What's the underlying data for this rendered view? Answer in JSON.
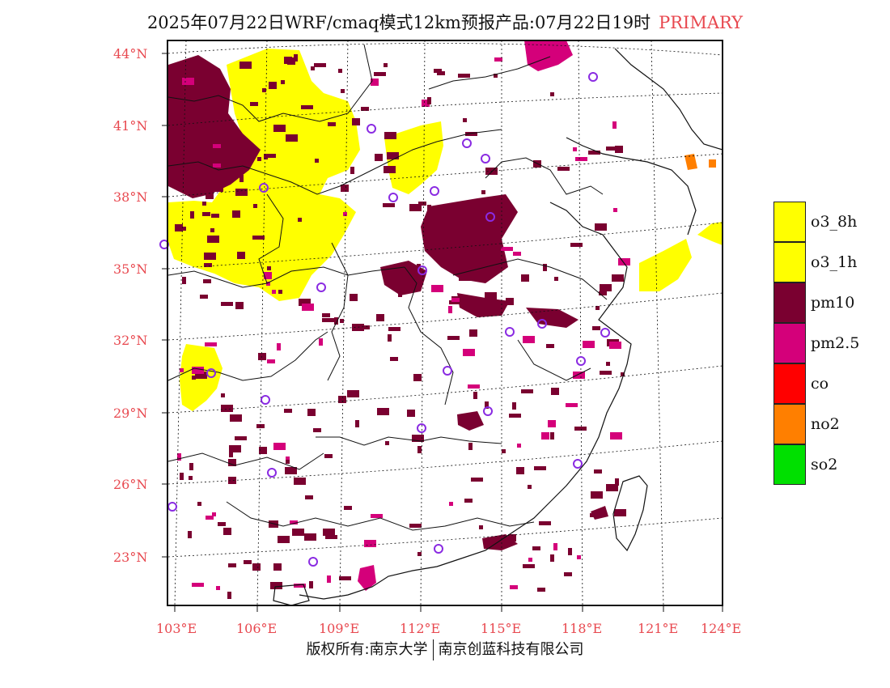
{
  "title": {
    "main": "2025年07月22日WRF/cmaq模式12km预报产品:07月22日19时",
    "tag": "PRIMARY"
  },
  "map": {
    "lat_labels": [
      "44°N",
      "41°N",
      "38°N",
      "35°N",
      "32°N",
      "29°N",
      "26°N",
      "23°N"
    ],
    "lon_labels": [
      "103°E",
      "106°E",
      "109°E",
      "112°E",
      "115°E",
      "118°E",
      "121°E",
      "124°E"
    ],
    "station_marker": "circle-icon"
  },
  "legend": {
    "items": [
      {
        "label": "o3_8h",
        "color": "#ffff00"
      },
      {
        "label": "o3_1h",
        "color": "#ffff00"
      },
      {
        "label": "pm10",
        "color": "#7a0030"
      },
      {
        "label": "pm2.5",
        "color": "#d4007a"
      },
      {
        "label": "co",
        "color": "#ff0000"
      },
      {
        "label": "no2",
        "color": "#ff7f00"
      },
      {
        "label": "so2",
        "color": "#00e000"
      }
    ]
  },
  "footer": {
    "left": "版权所有:南京大学",
    "right": "南京创蓝科技有限公司"
  },
  "colors": {
    "o3": "#ffff00",
    "pm10": "#7a0030",
    "pm25": "#d4007a",
    "no2": "#ff7f00",
    "station": "#8a2be2",
    "axis_text": "#e8484f"
  }
}
